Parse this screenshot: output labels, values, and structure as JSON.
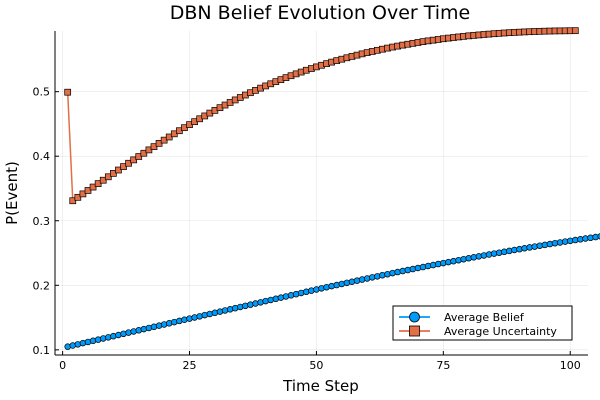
{
  "chart_data": {
    "type": "line",
    "title": "DBN Belief Evolution Over Time",
    "xlabel": "Time Step",
    "ylabel": "P(Event)",
    "xlim": [
      -1.5,
      103.5
    ],
    "ylim": [
      0.092,
      0.594
    ],
    "xticks": [
      0,
      25,
      50,
      75,
      100
    ],
    "yticks": [
      0.1,
      0.2,
      0.3,
      0.4,
      0.5
    ],
    "ytick_labels": [
      "0.1",
      "0.2",
      "0.3",
      "0.4",
      "0.5"
    ],
    "grid": true,
    "legend_position": "bottom-right",
    "series": [
      {
        "name": "Average Belief",
        "marker": "circle",
        "color": "#009AFA",
        "x_start": 1,
        "x_step": 1,
        "values": [
          0.1049,
          0.1067,
          0.1085,
          0.1104,
          0.1122,
          0.114,
          0.1158,
          0.1176,
          0.1194,
          0.1212,
          0.123,
          0.1248,
          0.1267,
          0.1285,
          0.1303,
          0.1321,
          0.1339,
          0.1357,
          0.1375,
          0.1393,
          0.1411,
          0.143,
          0.1448,
          0.1466,
          0.1484,
          0.1501,
          0.1519,
          0.1538,
          0.1556,
          0.1574,
          0.1592,
          0.161,
          0.1628,
          0.1646,
          0.1664,
          0.1682,
          0.17,
          0.1718,
          0.1736,
          0.1755,
          0.1773,
          0.1791,
          0.1809,
          0.1827,
          0.1845,
          0.1863,
          0.1881,
          0.1899,
          0.1917,
          0.1935,
          0.1953,
          0.197,
          0.1987,
          0.2004,
          0.2021,
          0.2038,
          0.2055,
          0.2072,
          0.2089,
          0.2106,
          0.2123,
          0.2139,
          0.2156,
          0.2172,
          0.2189,
          0.2205,
          0.2221,
          0.2236,
          0.2252,
          0.2268,
          0.2283,
          0.2299,
          0.2314,
          0.2329,
          0.2344,
          0.2359,
          0.2374,
          0.2389,
          0.2404,
          0.2419,
          0.2434,
          0.2448,
          0.2462,
          0.2477,
          0.2491,
          0.2505,
          0.2519,
          0.2533,
          0.2547,
          0.256,
          0.2574,
          0.2587,
          0.26,
          0.2613,
          0.2626,
          0.2639,
          0.2652,
          0.2664,
          0.2677,
          0.2689,
          0.2701,
          0.2713,
          0.2725,
          0.2736,
          0.2748,
          0.2759,
          0.277,
          0.278,
          0.2791,
          0.28
        ]
      },
      {
        "name": "Average Uncertainty",
        "marker": "square",
        "color": "#E26F46",
        "x_start": 1,
        "x_step": 1,
        "values": [
          0.4992,
          0.331,
          0.3363,
          0.3416,
          0.3469,
          0.3522,
          0.3575,
          0.3628,
          0.3681,
          0.3734,
          0.3786,
          0.3839,
          0.3891,
          0.3943,
          0.3995,
          0.4046,
          0.4098,
          0.4148,
          0.4199,
          0.4249,
          0.4298,
          0.4347,
          0.4395,
          0.4442,
          0.4489,
          0.4535,
          0.458,
          0.4624,
          0.4668,
          0.471,
          0.4752,
          0.4793,
          0.4833,
          0.4872,
          0.491,
          0.4948,
          0.4984,
          0.502,
          0.5055,
          0.5089,
          0.5122,
          0.5155,
          0.5186,
          0.5217,
          0.5247,
          0.5276,
          0.5304,
          0.5332,
          0.5358,
          0.5384,
          0.5409,
          0.5434,
          0.5458,
          0.5481,
          0.5503,
          0.5525,
          0.5546,
          0.5566,
          0.5586,
          0.5605,
          0.5623,
          0.5641,
          0.5658,
          0.5675,
          0.5691,
          0.5706,
          0.5721,
          0.5735,
          0.5749,
          0.5762,
          0.5775,
          0.5787,
          0.5798,
          0.5809,
          0.582,
          0.583,
          0.5839,
          0.5848,
          0.5857,
          0.5865,
          0.5872,
          0.5879,
          0.5886,
          0.5892,
          0.5898,
          0.5904,
          0.5909,
          0.5914,
          0.5918,
          0.5922,
          0.5926,
          0.5929,
          0.5932,
          0.5935,
          0.5937,
          0.5939,
          0.5941,
          0.5942,
          0.5943,
          0.5944,
          0.5945
        ]
      }
    ]
  }
}
